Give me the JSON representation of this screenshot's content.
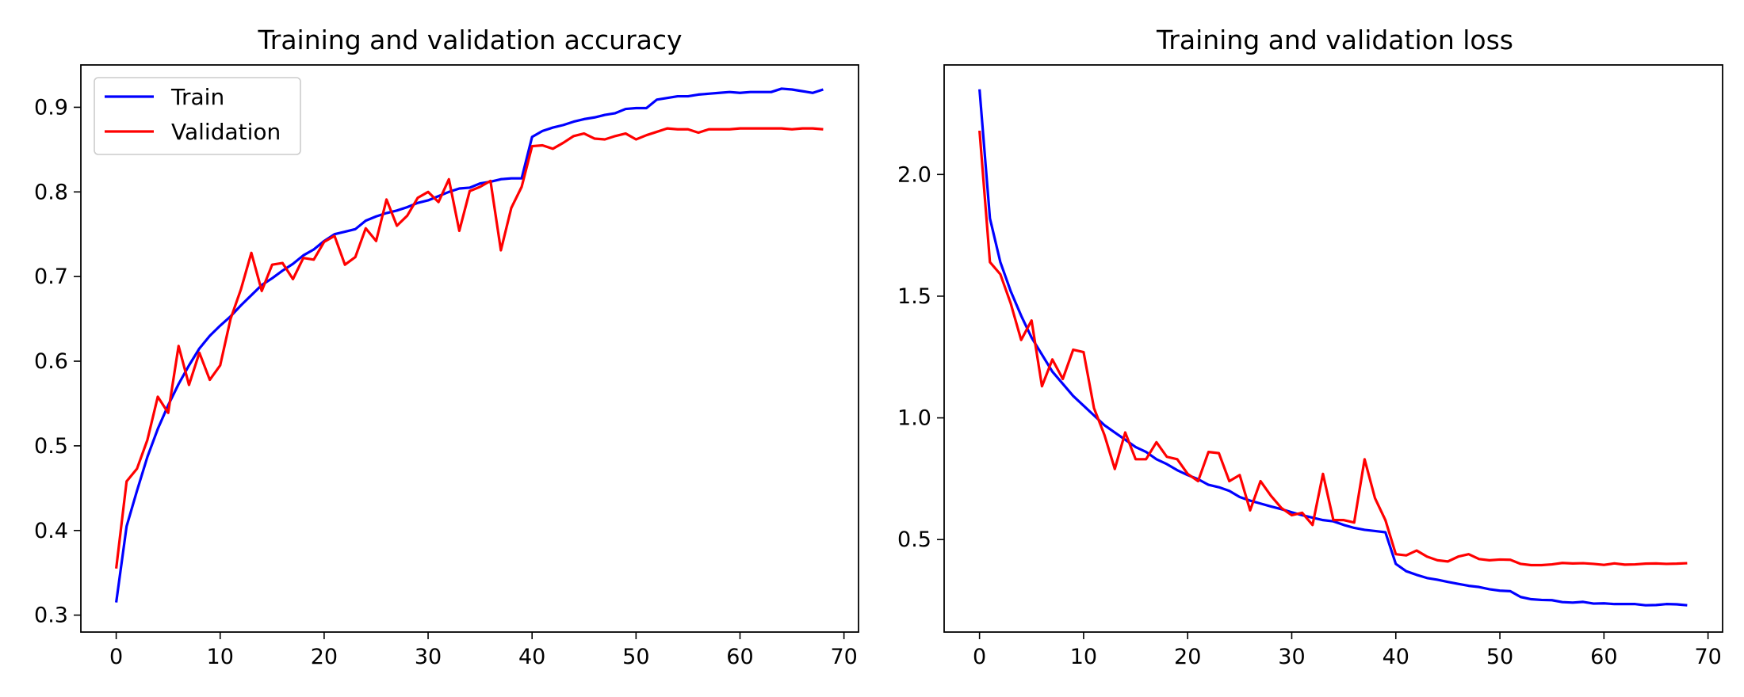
{
  "colors": {
    "train": "#0000ff",
    "validation": "#ff0000"
  },
  "chart_data": [
    {
      "type": "line",
      "title": "Training and validation accuracy",
      "xlabel": "",
      "ylabel": "",
      "xlim": [
        -3.4,
        71.4
      ],
      "ylim": [
        0.28,
        0.95
      ],
      "xticks": [
        0,
        10,
        20,
        30,
        40,
        50,
        60,
        70
      ],
      "yticks": [
        0.3,
        0.4,
        0.5,
        0.6,
        0.7,
        0.8,
        0.9
      ],
      "ytick_labels": [
        "0.3",
        "0.4",
        "0.5",
        "0.6",
        "0.7",
        "0.8",
        "0.9"
      ],
      "grid": false,
      "legend": "upper-left",
      "series": [
        {
          "name": "Train",
          "color": "#0000ff",
          "values": [
            0.315,
            0.405,
            0.447,
            0.487,
            0.52,
            0.548,
            0.573,
            0.595,
            0.615,
            0.63,
            0.642,
            0.653,
            0.666,
            0.678,
            0.69,
            0.698,
            0.707,
            0.715,
            0.725,
            0.732,
            0.742,
            0.75,
            0.753,
            0.756,
            0.766,
            0.771,
            0.775,
            0.778,
            0.782,
            0.787,
            0.79,
            0.795,
            0.8,
            0.804,
            0.805,
            0.81,
            0.812,
            0.815,
            0.816,
            0.816,
            0.865,
            0.872,
            0.876,
            0.879,
            0.883,
            0.886,
            0.888,
            0.891,
            0.893,
            0.898,
            0.899,
            0.899,
            0.909,
            0.911,
            0.913,
            0.913,
            0.915,
            0.916,
            0.917,
            0.918,
            0.917,
            0.918,
            0.918,
            0.918,
            0.922,
            0.921,
            0.919,
            0.917,
            0.921
          ]
        },
        {
          "name": "Validation",
          "color": "#ff0000",
          "values": [
            0.355,
            0.458,
            0.473,
            0.507,
            0.558,
            0.539,
            0.618,
            0.572,
            0.61,
            0.578,
            0.595,
            0.65,
            0.685,
            0.728,
            0.683,
            0.714,
            0.716,
            0.697,
            0.722,
            0.72,
            0.741,
            0.748,
            0.714,
            0.723,
            0.757,
            0.742,
            0.791,
            0.76,
            0.772,
            0.793,
            0.8,
            0.788,
            0.815,
            0.754,
            0.801,
            0.806,
            0.813,
            0.731,
            0.781,
            0.806,
            0.854,
            0.855,
            0.851,
            0.858,
            0.866,
            0.869,
            0.863,
            0.862,
            0.866,
            0.869,
            0.862,
            0.867,
            0.871,
            0.875,
            0.874,
            0.874,
            0.87,
            0.874,
            0.874,
            0.874,
            0.875,
            0.875,
            0.875,
            0.875,
            0.875,
            0.874,
            0.875,
            0.875,
            0.874
          ]
        }
      ]
    },
    {
      "type": "line",
      "title": "Training and validation loss",
      "xlabel": "",
      "ylabel": "",
      "xlim": [
        -3.4,
        71.4
      ],
      "ylim": [
        0.12,
        2.45
      ],
      "xticks": [
        0,
        10,
        20,
        30,
        40,
        50,
        60,
        70
      ],
      "yticks": [
        0.5,
        1.0,
        1.5,
        2.0
      ],
      "ytick_labels": [
        "0.5",
        "1.0",
        "1.5",
        "2.0"
      ],
      "grid": false,
      "legend": "none",
      "series": [
        {
          "name": "Train",
          "color": "#0000ff",
          "values": [
            2.35,
            1.82,
            1.64,
            1.52,
            1.42,
            1.33,
            1.26,
            1.19,
            1.14,
            1.09,
            1.05,
            1.01,
            0.97,
            0.94,
            0.91,
            0.88,
            0.86,
            0.83,
            0.81,
            0.785,
            0.765,
            0.748,
            0.725,
            0.715,
            0.7,
            0.675,
            0.66,
            0.648,
            0.636,
            0.625,
            0.612,
            0.6,
            0.59,
            0.58,
            0.575,
            0.56,
            0.548,
            0.54,
            0.535,
            0.53,
            0.4,
            0.37,
            0.355,
            0.342,
            0.335,
            0.326,
            0.318,
            0.31,
            0.305,
            0.296,
            0.29,
            0.288,
            0.264,
            0.255,
            0.252,
            0.251,
            0.243,
            0.241,
            0.244,
            0.237,
            0.238,
            0.235,
            0.235,
            0.235,
            0.23,
            0.231,
            0.235,
            0.234,
            0.23
          ]
        },
        {
          "name": "Validation",
          "color": "#ff0000",
          "values": [
            2.18,
            1.64,
            1.59,
            1.47,
            1.32,
            1.4,
            1.13,
            1.24,
            1.16,
            1.28,
            1.27,
            1.04,
            0.93,
            0.79,
            0.94,
            0.83,
            0.83,
            0.9,
            0.84,
            0.83,
            0.77,
            0.74,
            0.86,
            0.855,
            0.74,
            0.765,
            0.62,
            0.74,
            0.68,
            0.63,
            0.6,
            0.61,
            0.56,
            0.77,
            0.58,
            0.58,
            0.57,
            0.83,
            0.67,
            0.58,
            0.44,
            0.435,
            0.455,
            0.43,
            0.415,
            0.41,
            0.43,
            0.44,
            0.42,
            0.415,
            0.418,
            0.417,
            0.4,
            0.395,
            0.395,
            0.398,
            0.404,
            0.402,
            0.403,
            0.4,
            0.396,
            0.402,
            0.397,
            0.398,
            0.401,
            0.402,
            0.4,
            0.401,
            0.403
          ]
        }
      ]
    }
  ]
}
